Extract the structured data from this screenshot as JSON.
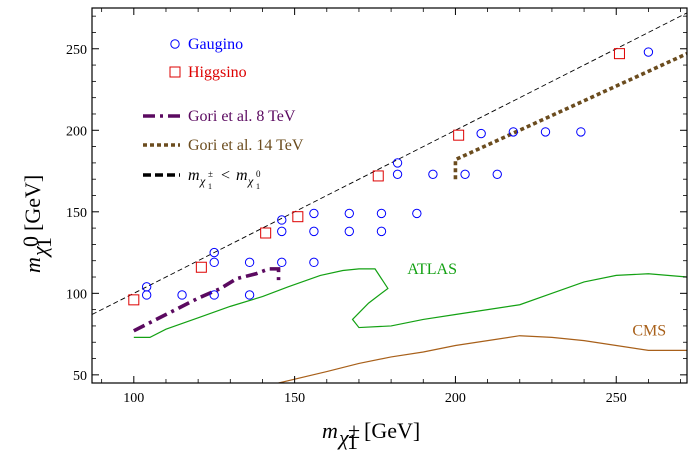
{
  "chart_data": {
    "type": "scatter",
    "xlabel": "m_χ₁± [GeV]",
    "ylabel": "m_χ₁⁰ [GeV]",
    "xlim": [
      87,
      272
    ],
    "ylim": [
      45,
      275
    ],
    "x_ticks": [
      100,
      150,
      200,
      250
    ],
    "y_ticks": [
      50,
      100,
      150,
      200,
      250
    ],
    "colors": {
      "gaugino": "#0000ff",
      "higgsino": "#dd0000",
      "gori8": "#5b0a60",
      "gori14": "#6b4c1e",
      "diagonal": "#000000",
      "atlas": "#13a113",
      "cms": "#a8601a"
    },
    "series": [
      {
        "name": "Gaugino",
        "marker": "circle",
        "color": "#0000ff",
        "points": [
          [
            104,
            104
          ],
          [
            104,
            99
          ],
          [
            115,
            99
          ],
          [
            125,
            125
          ],
          [
            125,
            119
          ],
          [
            125,
            99
          ],
          [
            136,
            119
          ],
          [
            136,
            99
          ],
          [
            146,
            145
          ],
          [
            146,
            138
          ],
          [
            146,
            119
          ],
          [
            156,
            149
          ],
          [
            156,
            138
          ],
          [
            156,
            119
          ],
          [
            167,
            149
          ],
          [
            167,
            138
          ],
          [
            177,
            149
          ],
          [
            177,
            138
          ],
          [
            188,
            149
          ],
          [
            182,
            180
          ],
          [
            182,
            173
          ],
          [
            193,
            173
          ],
          [
            203,
            173
          ],
          [
            208,
            198
          ],
          [
            213,
            173
          ],
          [
            218,
            199
          ],
          [
            228,
            199
          ],
          [
            239,
            199
          ],
          [
            260,
            248
          ]
        ]
      },
      {
        "name": "Higgsino",
        "marker": "square",
        "color": "#dd0000",
        "points": [
          [
            100,
            96
          ],
          [
            121,
            116
          ],
          [
            141,
            137
          ],
          [
            151,
            147
          ],
          [
            176,
            172
          ],
          [
            201,
            197
          ],
          [
            251,
            247
          ]
        ]
      }
    ],
    "lines": [
      {
        "name": "Gori et al. 8 TeV",
        "style": "dash-dot",
        "color": "#5b0a60",
        "points": [
          [
            100,
            77
          ],
          [
            110,
            87
          ],
          [
            120,
            97
          ],
          [
            127,
            103
          ],
          [
            132,
            109
          ],
          [
            138,
            112
          ],
          [
            142,
            115
          ],
          [
            145,
            115
          ],
          [
            145,
            105
          ]
        ]
      },
      {
        "name": "Gori et al. 14 TeV",
        "style": "dotted",
        "color": "#6b4c1e",
        "points": [
          [
            200,
            170
          ],
          [
            200,
            182
          ],
          [
            272,
            247
          ]
        ]
      },
      {
        "name": "m_χ₁± < m_χ₁⁰",
        "style": "dashed-thin",
        "color": "#000000",
        "points": [
          [
            87,
            87
          ],
          [
            272,
            272
          ]
        ]
      }
    ],
    "regions": [
      {
        "label": "ATLAS",
        "color": "#13a113",
        "label_position": [
          185,
          112
        ],
        "boundary": [
          [
            100,
            73
          ],
          [
            105,
            73
          ],
          [
            110,
            78
          ],
          [
            120,
            85
          ],
          [
            130,
            92
          ],
          [
            140,
            98
          ],
          [
            148,
            104
          ],
          [
            158,
            111
          ],
          [
            165,
            114
          ],
          [
            170,
            115
          ],
          [
            175,
            115
          ],
          [
            179,
            103
          ],
          [
            173,
            94
          ],
          [
            168,
            84
          ],
          [
            170,
            79
          ],
          [
            180,
            80
          ],
          [
            190,
            84
          ],
          [
            200,
            87
          ],
          [
            210,
            90
          ],
          [
            220,
            93
          ],
          [
            230,
            100
          ],
          [
            240,
            107
          ],
          [
            250,
            111
          ],
          [
            260,
            112
          ],
          [
            272,
            110
          ]
        ]
      },
      {
        "label": "CMS",
        "color": "#a8601a",
        "label_position": [
          255,
          74
        ],
        "boundary": [
          [
            145,
            45
          ],
          [
            160,
            52
          ],
          [
            170,
            57
          ],
          [
            180,
            61
          ],
          [
            190,
            64
          ],
          [
            200,
            68
          ],
          [
            210,
            71
          ],
          [
            220,
            74
          ],
          [
            230,
            73
          ],
          [
            240,
            71
          ],
          [
            250,
            68
          ],
          [
            260,
            65
          ],
          [
            272,
            65
          ]
        ]
      }
    ],
    "legend": {
      "position": "top-left",
      "entries": [
        {
          "label": "Gaugino",
          "marker": "circle",
          "color": "#0000ff"
        },
        {
          "label": "Higgsino",
          "marker": "square",
          "color": "#dd0000"
        },
        {
          "label": "Gori et al. 8 TeV",
          "line": "dash-dot",
          "color": "#5b0a60"
        },
        {
          "label": "Gori et al. 14 TeV",
          "line": "dotted",
          "color": "#6b4c1e"
        },
        {
          "label": "m_χ₁± < m_χ₁⁰",
          "line": "dashed",
          "color": "#000000"
        }
      ]
    }
  }
}
